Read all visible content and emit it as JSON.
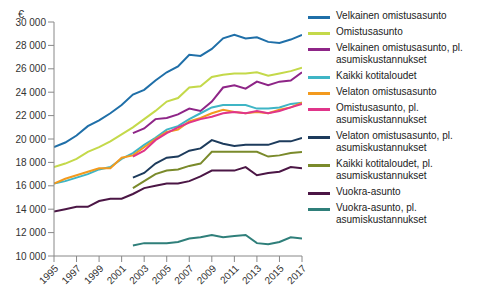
{
  "chart_data": {
    "type": "line",
    "y_label": "€",
    "x": [
      1995,
      1996,
      1997,
      1998,
      1999,
      2000,
      2001,
      2002,
      2003,
      2004,
      2005,
      2006,
      2007,
      2008,
      2009,
      2010,
      2011,
      2012,
      2013,
      2014,
      2015,
      2016,
      2017
    ],
    "xlim": [
      1995,
      2017
    ],
    "xticks": [
      1995,
      1997,
      1999,
      2001,
      2003,
      2005,
      2007,
      2009,
      2011,
      2013,
      2015,
      2017
    ],
    "ylim": [
      10000,
      30000
    ],
    "yticks": [
      {
        "value": 10000,
        "label": "10 000"
      },
      {
        "value": 12000,
        "label": "12 000"
      },
      {
        "value": 14000,
        "label": "14 000"
      },
      {
        "value": 16000,
        "label": "16 000"
      },
      {
        "value": 18000,
        "label": "18 000"
      },
      {
        "value": 20000,
        "label": "20 000"
      },
      {
        "value": 22000,
        "label": "22 000"
      },
      {
        "value": 24000,
        "label": "24 000"
      },
      {
        "value": 26000,
        "label": "26 000"
      },
      {
        "value": 28000,
        "label": "28 000"
      },
      {
        "value": 30000,
        "label": "30 000"
      }
    ],
    "grid": false,
    "legend": "right",
    "series": [
      {
        "name": "Velkainen omistusasunto",
        "color": "#1f6fa8",
        "values": [
          19300,
          19700,
          20300,
          21100,
          21600,
          22200,
          22900,
          23800,
          24200,
          25000,
          25700,
          26200,
          27200,
          27100,
          27700,
          28600,
          28900,
          28600,
          28700,
          28300,
          28200,
          28500,
          28900
        ]
      },
      {
        "name": "Omistusasunto",
        "color": "#c4d94a",
        "values": [
          17600,
          17900,
          18300,
          18900,
          19300,
          19800,
          20400,
          21000,
          21700,
          22400,
          23200,
          23500,
          24400,
          24500,
          25300,
          25500,
          25600,
          25600,
          25700,
          25400,
          25600,
          25800,
          26100
        ]
      },
      {
        "name": "Velkainen omistusasunto, pl. asumiskustannukset",
        "color": "#8e2587",
        "values": [
          null,
          null,
          null,
          null,
          null,
          null,
          null,
          20500,
          20900,
          21700,
          21800,
          22100,
          22600,
          22400,
          23200,
          24400,
          24600,
          24300,
          24900,
          24600,
          24900,
          25000,
          25700
        ]
      },
      {
        "name": "Kaikki kotitaloudet",
        "color": "#3fb5c5",
        "values": [
          16200,
          16400,
          16700,
          17000,
          17400,
          17600,
          18300,
          18800,
          19500,
          20100,
          20800,
          21100,
          21700,
          22200,
          22700,
          22900,
          22900,
          22900,
          22600,
          22600,
          22700,
          23000,
          23100
        ]
      },
      {
        "name": "Velaton omistusasunto",
        "color": "#f39a1e",
        "values": [
          16200,
          16600,
          16900,
          17200,
          17500,
          17500,
          18400,
          18600,
          19300,
          20000,
          20600,
          20800,
          21500,
          21800,
          22200,
          22500,
          22300,
          22200,
          22300,
          22200,
          22500,
          22700,
          23100
        ]
      },
      {
        "name": "Omistusasunto, pl. asumiskustannukset",
        "color": "#e0358a",
        "values": [
          null,
          null,
          null,
          null,
          null,
          null,
          null,
          18500,
          19000,
          19900,
          20500,
          21000,
          21400,
          21700,
          21900,
          22200,
          22300,
          22200,
          22400,
          22200,
          22400,
          22700,
          23000
        ]
      },
      {
        "name": "Velaton omistusasunto, pl. asumiskustannukset",
        "color": "#1d3b5c",
        "values": [
          null,
          null,
          null,
          null,
          null,
          null,
          null,
          16700,
          17100,
          17900,
          18400,
          18500,
          19000,
          19200,
          19900,
          19600,
          19400,
          19500,
          19500,
          19500,
          19800,
          19800,
          20100
        ]
      },
      {
        "name": "Kaikki kotitaloudet, pl. asumiskustannukset",
        "color": "#7a8a2b",
        "values": [
          null,
          null,
          null,
          null,
          null,
          null,
          null,
          15800,
          16400,
          17000,
          17300,
          17400,
          17700,
          17900,
          18900,
          18900,
          18900,
          18900,
          18900,
          18500,
          18600,
          18800,
          18900
        ]
      },
      {
        "name": "Vuokra-asunto",
        "color": "#4b1645",
        "values": [
          13800,
          14000,
          14200,
          14200,
          14700,
          14900,
          14900,
          15300,
          15800,
          16000,
          16200,
          16200,
          16400,
          16800,
          17300,
          17300,
          17300,
          17600,
          16900,
          17100,
          17200,
          17600,
          17500
        ]
      },
      {
        "name": "Vuokra-asunto, pl. asumiskustannukset",
        "color": "#2f7f7a",
        "values": [
          null,
          null,
          null,
          null,
          null,
          null,
          null,
          10900,
          11100,
          11100,
          11100,
          11200,
          11500,
          11600,
          11800,
          11600,
          11700,
          11800,
          11100,
          11000,
          11200,
          11600,
          11500
        ]
      }
    ]
  }
}
